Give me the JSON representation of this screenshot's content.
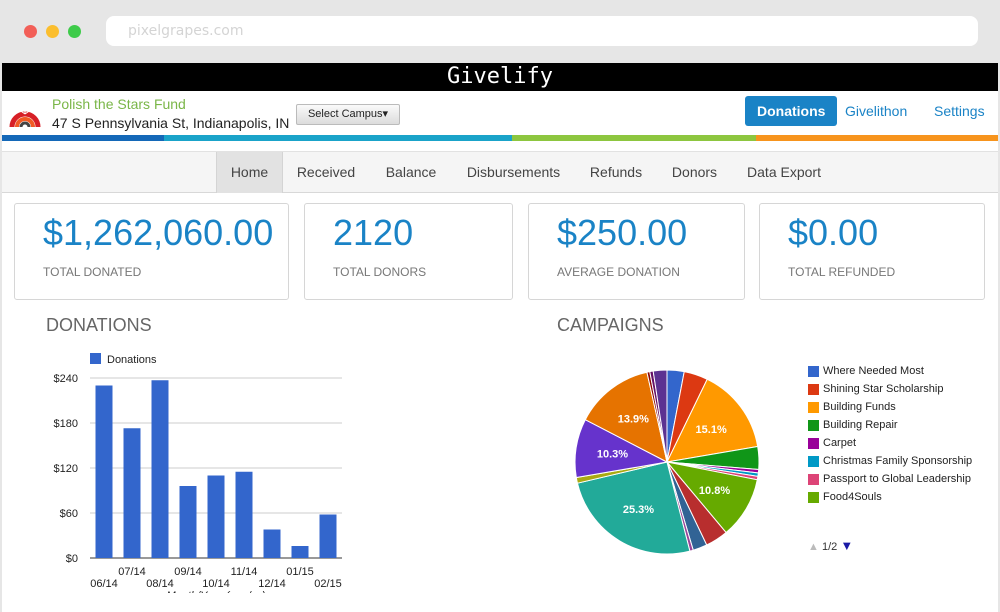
{
  "browser": {
    "url": "pixelgrapes.com"
  },
  "brand": {
    "name": "Givelify"
  },
  "header": {
    "fund_name": "Polish the Stars Fund",
    "address": "47 S Pennsylvania St, Indianapolis, IN",
    "campus_button": "Select Campus",
    "nav": [
      {
        "label": "Donations",
        "active": true
      },
      {
        "label": "Givelithon",
        "active": false
      },
      {
        "label": "Settings",
        "active": false
      }
    ]
  },
  "colors": {
    "accent": "#1a83c6",
    "bar_blue": "#3366cc",
    "stripe": [
      "#1468b8",
      "#1aa3c9",
      "#8dc63f",
      "#f7941d"
    ]
  },
  "subnav": [
    "Home",
    "Received",
    "Balance",
    "Disbursements",
    "Refunds",
    "Donors",
    "Data Export"
  ],
  "stats": [
    {
      "value": "$1,262,060.00",
      "label": "TOTAL DONATED"
    },
    {
      "value": "2120",
      "label": "TOTAL DONORS"
    },
    {
      "value": "$250.00",
      "label": "AVERAGE DONATION"
    },
    {
      "value": "$0.00",
      "label": "TOTAL REFUNDED"
    }
  ],
  "sections": {
    "donations": "DONATIONS",
    "campaigns": "CAMPAIGNS"
  },
  "chart_data": [
    {
      "type": "bar",
      "title": "DONATIONS",
      "series": [
        {
          "name": "Donations",
          "values": [
            230,
            173,
            237,
            96,
            110,
            115,
            38,
            16,
            58
          ]
        }
      ],
      "categories": [
        "06/14",
        "07/14",
        "08/14",
        "09/14",
        "10/14",
        "11/14",
        "12/14",
        "01/15",
        "02/15"
      ],
      "yticks": [
        "$240",
        "$180",
        "$120",
        "$60",
        "$0"
      ],
      "ylim": [
        0,
        240
      ],
      "xlabel": "Month/Year (mm/yy)",
      "ylabel": "",
      "legend": "top-left",
      "grid": true
    },
    {
      "type": "pie",
      "title": "CAMPAIGNS",
      "slices": [
        {
          "label": "Where Needed Most",
          "value": 3.0,
          "color": "#3366cc"
        },
        {
          "label": "Shining Star Scholarship",
          "value": 4.2,
          "color": "#dc3912"
        },
        {
          "label": "Building Funds",
          "value": 15.1,
          "color": "#ff9900",
          "display": "15.1%"
        },
        {
          "label": "Building Repair",
          "value": 4.0,
          "color": "#109618"
        },
        {
          "label": "Carpet",
          "value": 0.6,
          "color": "#990099"
        },
        {
          "label": "Christmas Family Sponsorship",
          "value": 0.6,
          "color": "#0099c6"
        },
        {
          "label": "Passport to Global Leadership",
          "value": 0.6,
          "color": "#dd4477"
        },
        {
          "label": "Food4Souls",
          "value": 10.8,
          "color": "#66aa00",
          "display": "10.8%"
        },
        {
          "label": "",
          "value": 4.0,
          "color": "#b82e2e"
        },
        {
          "label": "",
          "value": 2.5,
          "color": "#316395"
        },
        {
          "label": "",
          "value": 0.6,
          "color": "#994499"
        },
        {
          "label": "",
          "value": 25.3,
          "color": "#22aa99",
          "display": "25.3%"
        },
        {
          "label": "",
          "value": 1.0,
          "color": "#aaaa11"
        },
        {
          "label": "",
          "value": 10.3,
          "color": "#6633cc",
          "display": "10.3%"
        },
        {
          "label": "",
          "value": 13.9,
          "color": "#e67300",
          "display": "13.9%"
        },
        {
          "label": "",
          "value": 0.5,
          "color": "#8b0707"
        },
        {
          "label": "",
          "value": 0.6,
          "color": "#651067"
        },
        {
          "label": "",
          "value": 2.4,
          "color": "#5c3292"
        }
      ],
      "legend": [
        "Where Needed Most",
        "Shining Star Scholarship",
        "Building Funds",
        "Building Repair",
        "Carpet",
        "Christmas Family Sponsorship",
        "Passport to Global Leadership",
        "Food4Souls"
      ],
      "legend_colors": [
        "#3366cc",
        "#dc3912",
        "#ff9900",
        "#109618",
        "#990099",
        "#0099c6",
        "#dd4477",
        "#66aa00"
      ],
      "pager": "1/2"
    }
  ]
}
